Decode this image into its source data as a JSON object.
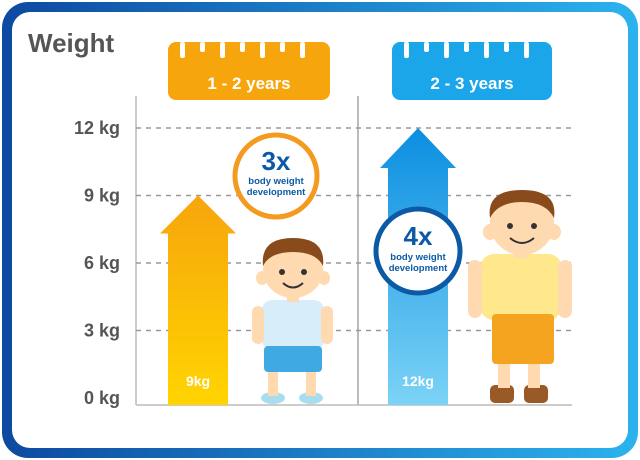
{
  "chart_data": {
    "type": "bar",
    "title": "Weight",
    "ylim": [
      0,
      12
    ],
    "yticks": [
      0,
      3,
      6,
      9,
      12
    ],
    "yunit": "kg",
    "grid": true,
    "categories": [
      "1 - 2 years",
      "2 - 3 years"
    ],
    "values": [
      9,
      12
    ],
    "value_labels": [
      "9kg",
      "12kg"
    ],
    "badges": [
      {
        "multiplier": "3x",
        "caption_line1": "body weight",
        "caption_line2": "development"
      },
      {
        "multiplier": "4x",
        "caption_line1": "body weight",
        "caption_line2": "development"
      }
    ]
  },
  "colors": {
    "frame_blue": "#0d49a0",
    "frame_cyan": "#2bb3ee",
    "orange_top": "#f7a50c",
    "orange_bottom": "#ffd400",
    "blue_top": "#0b8ee0",
    "blue_bottom": "#7cd3f6",
    "badge_orange": "#f49a1e",
    "badge_blue": "#0c5aa6",
    "tick_text": "#555555",
    "grid": "#999999"
  },
  "icons": [
    "ruler-icon",
    "child-icon",
    "arrow-icon"
  ]
}
